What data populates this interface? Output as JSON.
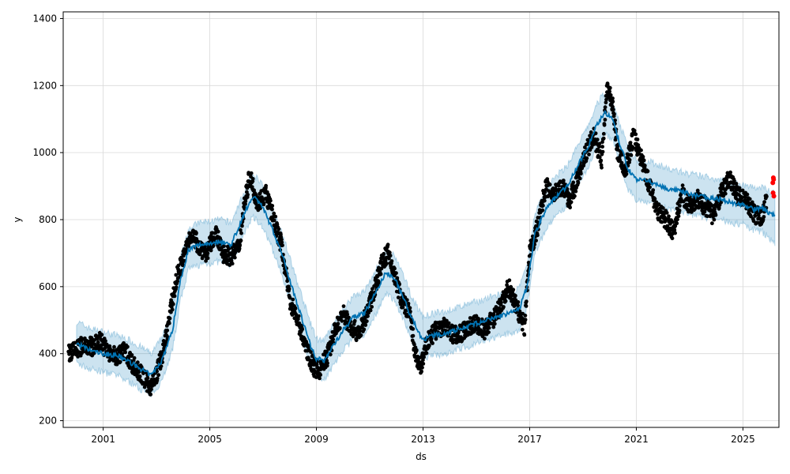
{
  "chart_data": {
    "type": "scatter",
    "title": "",
    "xlabel": "ds",
    "ylabel": "y",
    "xlim": [
      1999.5,
      2026.35
    ],
    "ylim": [
      180,
      1420
    ],
    "grid": true,
    "xticks": [
      2001,
      2005,
      2009,
      2013,
      2017,
      2021,
      2025
    ],
    "xtick_labels": [
      "2001",
      "2005",
      "2009",
      "2013",
      "2017",
      "2021",
      "2025"
    ],
    "yticks": [
      200,
      400,
      600,
      800,
      1000,
      1200,
      1400
    ],
    "ytick_labels": [
      "200",
      "400",
      "600",
      "800",
      "1000",
      "1200",
      "1400"
    ],
    "colors": {
      "observed": "#000000",
      "forecast": "#0072B2",
      "interval": "#0072B2",
      "highlight": "#ff0000",
      "grid": "#d9d9d9"
    },
    "forecast": {
      "x": [
        2000.0,
        2000.5,
        2001.0,
        2001.5,
        2002.0,
        2002.5,
        2002.8,
        2003.2,
        2003.6,
        2003.9,
        2004.2,
        2004.6,
        2005.0,
        2005.4,
        2005.8,
        2006.2,
        2006.6,
        2006.9,
        2007.3,
        2007.7,
        2008.0,
        2008.4,
        2008.8,
        2009.0,
        2009.3,
        2009.6,
        2010.0,
        2010.4,
        2010.8,
        2011.2,
        2011.6,
        2011.9,
        2012.3,
        2012.6,
        2013.0,
        2013.4,
        2013.8,
        2014.2,
        2014.6,
        2015.0,
        2015.4,
        2015.8,
        2016.2,
        2016.6,
        2016.9,
        2017.2,
        2017.6,
        2018.0,
        2018.4,
        2018.8,
        2019.2,
        2019.5,
        2019.8,
        2020.1,
        2020.4,
        2020.7,
        2021.0,
        2021.4,
        2021.8,
        2022.2,
        2022.6,
        2023.0,
        2023.4,
        2023.8,
        2024.2,
        2024.6,
        2025.0,
        2025.4,
        2025.7,
        2026.0,
        2026.2
      ],
      "yhat": [
        430,
        410,
        400,
        395,
        375,
        350,
        335,
        380,
        470,
        620,
        710,
        725,
        730,
        735,
        725,
        800,
        870,
        850,
        780,
        700,
        620,
        520,
        420,
        385,
        380,
        420,
        470,
        510,
        520,
        580,
        640,
        630,
        560,
        500,
        440,
        455,
        460,
        470,
        480,
        490,
        500,
        510,
        520,
        530,
        600,
        760,
        830,
        870,
        900,
        960,
        1020,
        1080,
        1120,
        1100,
        1020,
        950,
        920,
        915,
        905,
        890,
        885,
        875,
        870,
        865,
        860,
        850,
        845,
        830,
        835,
        820,
        810
      ],
      "lower": [
        370,
        355,
        345,
        335,
        315,
        290,
        275,
        320,
        410,
        560,
        650,
        665,
        670,
        675,
        665,
        740,
        810,
        790,
        720,
        640,
        560,
        460,
        360,
        330,
        325,
        360,
        410,
        445,
        455,
        515,
        575,
        565,
        495,
        435,
        385,
        395,
        400,
        410,
        420,
        430,
        440,
        450,
        460,
        470,
        540,
        700,
        770,
        810,
        840,
        900,
        960,
        1020,
        1060,
        1040,
        960,
        890,
        860,
        855,
        845,
        830,
        825,
        815,
        810,
        805,
        800,
        790,
        785,
        770,
        765,
        745,
        730
      ],
      "upper": [
        495,
        475,
        465,
        455,
        440,
        415,
        400,
        445,
        535,
        685,
        775,
        790,
        795,
        800,
        790,
        865,
        935,
        915,
        845,
        765,
        685,
        585,
        485,
        445,
        440,
        480,
        530,
        575,
        585,
        645,
        705,
        695,
        625,
        565,
        510,
        520,
        525,
        535,
        545,
        555,
        565,
        575,
        585,
        595,
        660,
        820,
        890,
        930,
        960,
        1020,
        1080,
        1140,
        1180,
        1160,
        1080,
        1010,
        980,
        975,
        965,
        950,
        945,
        935,
        930,
        925,
        920,
        910,
        905,
        895,
        895,
        885,
        880
      ]
    },
    "observed_trace": {
      "x": [
        1999.7,
        2000.0,
        2000.3,
        2000.6,
        2000.9,
        2001.2,
        2001.5,
        2001.8,
        2002.1,
        2002.4,
        2002.6,
        2002.8,
        2003.0,
        2003.3,
        2003.6,
        2003.8,
        2004.0,
        2004.3,
        2004.6,
        2004.9,
        2005.2,
        2005.5,
        2005.8,
        2006.1,
        2006.3,
        2006.5,
        2006.8,
        2007.1,
        2007.4,
        2007.7,
        2008.0,
        2008.3,
        2008.6,
        2008.9,
        2009.1,
        2009.4,
        2009.7,
        2010.0,
        2010.3,
        2010.6,
        2010.9,
        2011.2,
        2011.5,
        2011.7,
        2011.9,
        2012.2,
        2012.5,
        2012.7,
        2012.9,
        2013.2,
        2013.5,
        2013.8,
        2014.1,
        2014.4,
        2014.7,
        2015.0,
        2015.3,
        2015.6,
        2015.9,
        2016.2,
        2016.5,
        2016.8,
        2017.0,
        2017.3,
        2017.6,
        2017.9,
        2018.2,
        2018.5,
        2018.8,
        2019.1,
        2019.4,
        2019.7,
        2019.9,
        2020.1,
        2020.3,
        2020.6,
        2020.9,
        2021.2,
        2021.5,
        2021.8,
        2022.1,
        2022.4,
        2022.7,
        2023.0,
        2023.3,
        2023.6,
        2023.9,
        2024.2,
        2024.5,
        2024.8,
        2025.1,
        2025.4,
        2025.7,
        2025.9
      ],
      "y": [
        400,
        410,
        430,
        420,
        440,
        400,
        390,
        410,
        370,
        340,
        320,
        300,
        340,
        420,
        560,
        640,
        680,
        760,
        720,
        700,
        760,
        700,
        690,
        720,
        850,
        930,
        850,
        880,
        800,
        720,
        560,
        500,
        420,
        360,
        350,
        390,
        470,
        520,
        480,
        460,
        520,
        600,
        680,
        700,
        640,
        560,
        520,
        400,
        360,
        440,
        470,
        480,
        460,
        460,
        480,
        490,
        470,
        500,
        540,
        600,
        540,
        480,
        700,
        780,
        900,
        880,
        900,
        860,
        920,
        1000,
        1050,
        980,
        1200,
        1150,
        1000,
        950,
        1050,
        980,
        900,
        830,
        800,
        760,
        880,
        840,
        860,
        840,
        810,
        880,
        930,
        870,
        860,
        820,
        800,
        870
      ]
    },
    "highlight_points": {
      "x": [
        2026.12,
        2026.14,
        2026.15,
        2026.13,
        2026.16
      ],
      "y": [
        910,
        925,
        920,
        880,
        870
      ]
    }
  }
}
